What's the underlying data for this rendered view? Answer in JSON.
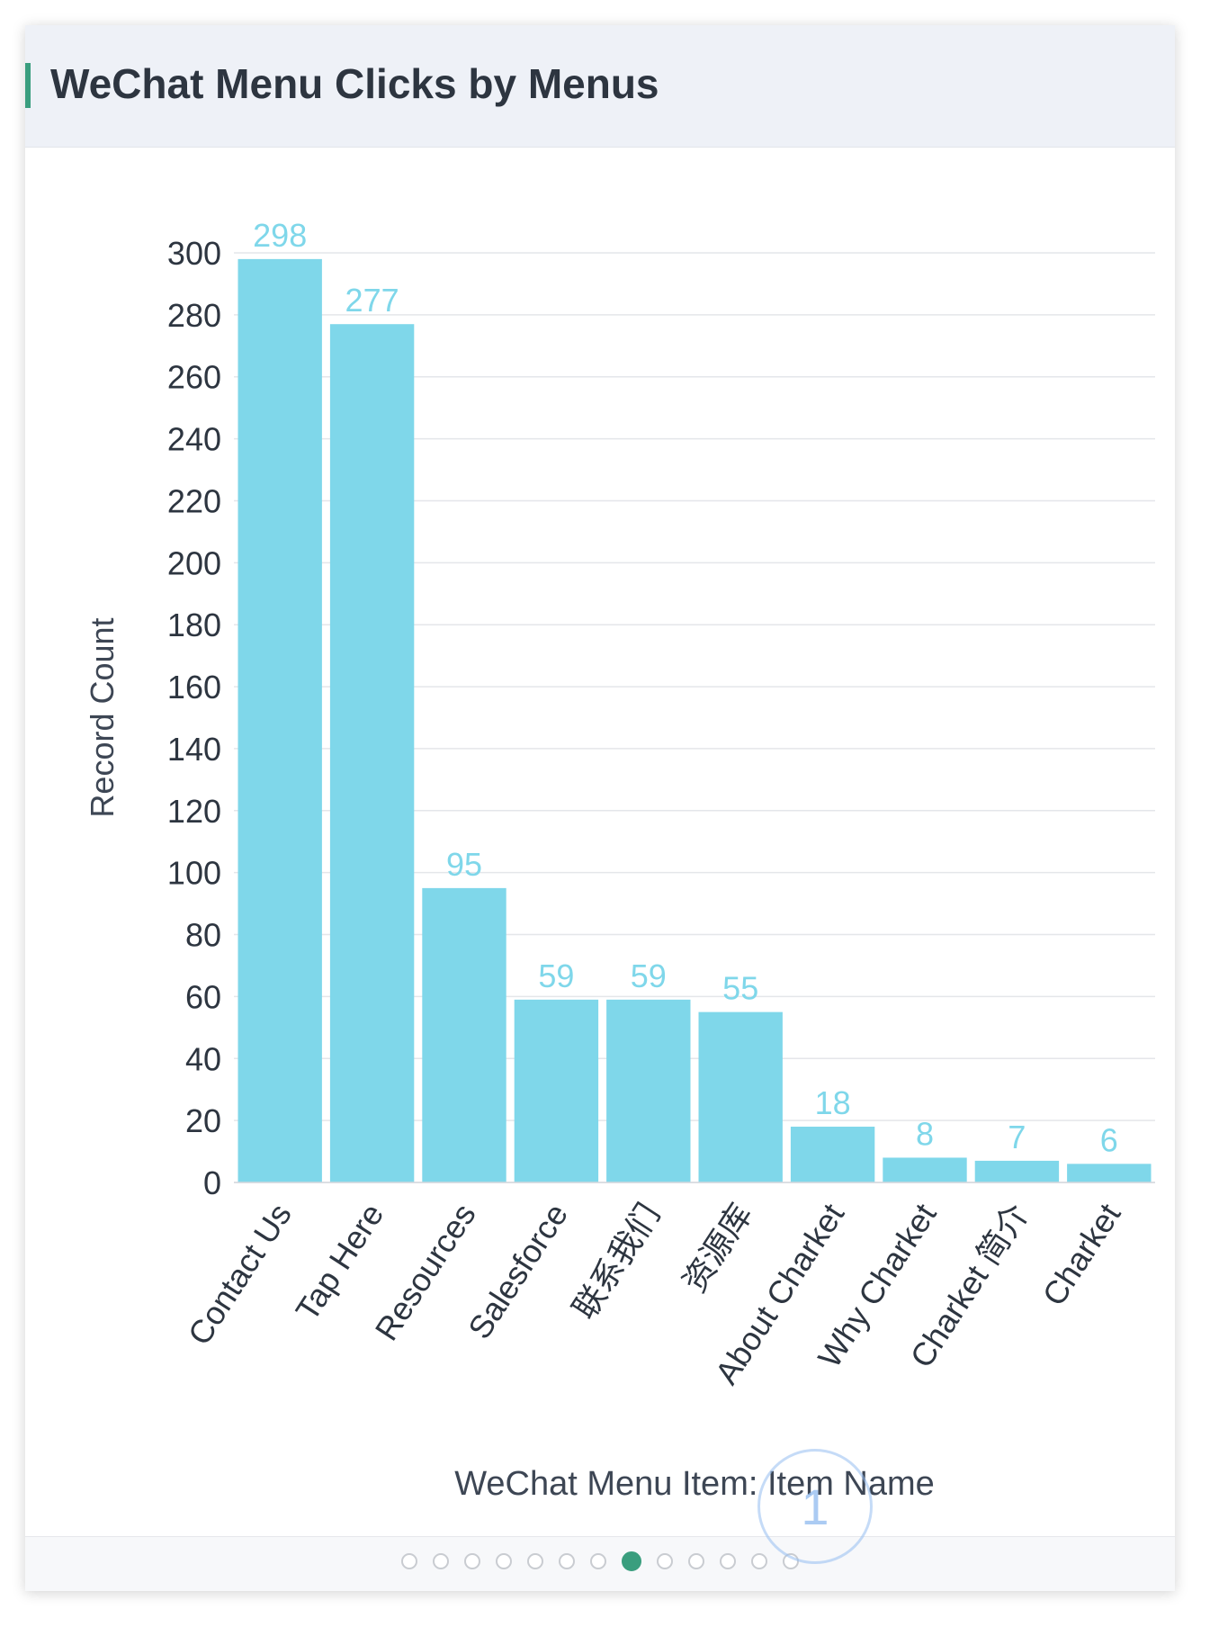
{
  "header": {
    "title": "WeChat Menu Clicks by Menus",
    "accent_color": "#3a9e7e"
  },
  "chart_data": {
    "type": "bar",
    "categories": [
      "Contact Us",
      "Tap Here",
      "Resources",
      "Salesforce",
      "联系我们",
      "资源库",
      "About Charket",
      "Why Charket",
      "Charket 简介",
      "Charket"
    ],
    "values": [
      298,
      277,
      95,
      59,
      59,
      55,
      18,
      8,
      7,
      6
    ],
    "ylabel": "Record Count",
    "xlabel": "WeChat Menu Item: Item Name",
    "ylim": [
      0,
      300
    ],
    "yticks": [
      0,
      20,
      40,
      60,
      80,
      100,
      120,
      140,
      160,
      180,
      200,
      220,
      240,
      260,
      280,
      300
    ],
    "grid": true,
    "data_labels": true,
    "bar_color": "#7fd7ea",
    "label_color": "#7fd7ea"
  },
  "pagination": {
    "total": 13,
    "active_index": 7
  },
  "touch_indicator": {
    "label": "1"
  }
}
